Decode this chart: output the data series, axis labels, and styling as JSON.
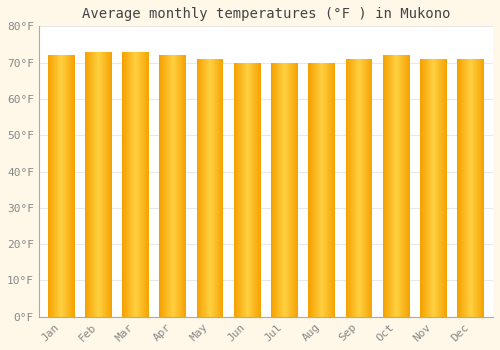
{
  "title": "Average monthly temperatures (°F ) in Mukono",
  "months": [
    "Jan",
    "Feb",
    "Mar",
    "Apr",
    "May",
    "Jun",
    "Jul",
    "Aug",
    "Sep",
    "Oct",
    "Nov",
    "Dec"
  ],
  "values": [
    72,
    73,
    73,
    72,
    71,
    70,
    70,
    70,
    71,
    72,
    71,
    71
  ],
  "ylim": [
    0,
    80
  ],
  "yticks": [
    0,
    10,
    20,
    30,
    40,
    50,
    60,
    70,
    80
  ],
  "ytick_labels": [
    "0°F",
    "10°F",
    "20°F",
    "30°F",
    "40°F",
    "50°F",
    "60°F",
    "70°F",
    "80°F"
  ],
  "bar_color_center": "#FFD040",
  "bar_color_edge": "#F5A000",
  "background_color": "#FFFFFF",
  "plot_bg_color": "#FFFFFF",
  "outer_bg_color": "#FFF8E8",
  "grid_color": "#E8E8E8",
  "title_color": "#444444",
  "tick_color": "#888888",
  "title_fontsize": 10,
  "tick_fontsize": 8,
  "bar_width": 0.72
}
